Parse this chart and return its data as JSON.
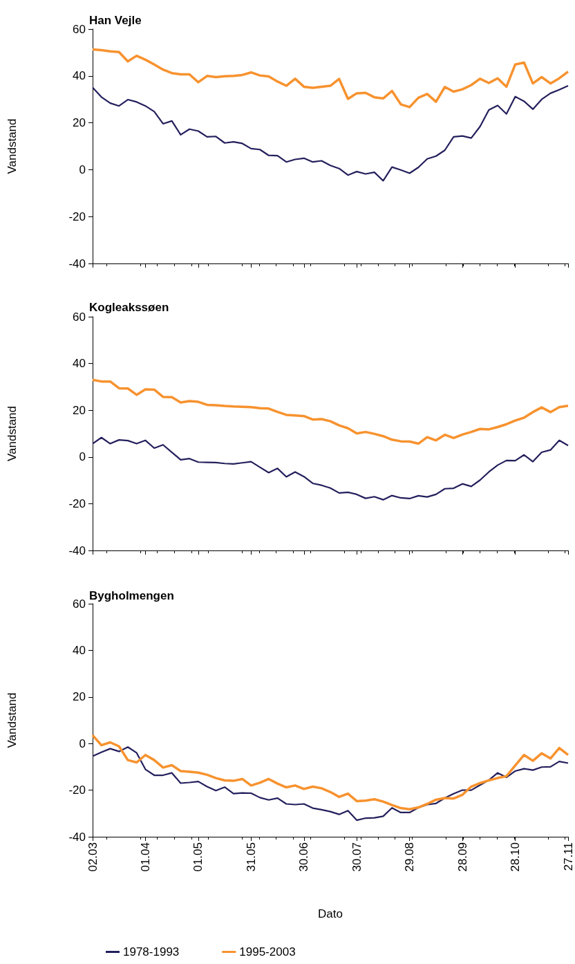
{
  "chart_data": [
    {
      "type": "line",
      "title": "Han Vejle",
      "ylabel": "Vandstand",
      "x": [
        "--03-02",
        "--03-07",
        "--03-12",
        "--03-17",
        "--03-22",
        "--03-27",
        "--04-01",
        "--04-06",
        "--04-11",
        "--04-16",
        "--04-21",
        "--04-26",
        "--05-01",
        "--05-06",
        "--05-11",
        "--05-16",
        "--05-21",
        "--05-26",
        "--05-31",
        "--06-05",
        "--06-10",
        "--06-15",
        "--06-20",
        "--06-25",
        "--06-30",
        "--07-05",
        "--07-10",
        "--07-15",
        "--07-20",
        "--07-25",
        "--07-30",
        "--08-04",
        "--08-09",
        "--08-14",
        "--08-19",
        "--08-24",
        "--08-29",
        "--09-03",
        "--09-08",
        "--09-13",
        "--09-18",
        "--09-23",
        "--09-28",
        "--10-03",
        "--10-08",
        "--10-13",
        "--10-18",
        "--10-23",
        "--10-28",
        "--11-02",
        "--11-07",
        "--11-12",
        "--11-17",
        "--11-22",
        "--11-27"
      ],
      "xlim": [
        "--03-02",
        "--11-27"
      ],
      "xticks": [
        {
          "value": "--03-02",
          "label": "02.03"
        },
        {
          "value": "--04-01",
          "label": "01.04"
        },
        {
          "value": "--05-01",
          "label": "01.05"
        },
        {
          "value": "--05-31",
          "label": "31.05"
        },
        {
          "value": "--06-30",
          "label": "30.06"
        },
        {
          "value": "--07-30",
          "label": "30.07"
        },
        {
          "value": "--08-29",
          "label": "29.08"
        },
        {
          "value": "--09-28",
          "label": "28.09"
        },
        {
          "value": "--10-28",
          "label": "28.10"
        },
        {
          "value": "--11-27",
          "label": "27.11"
        }
      ],
      "ylim": [
        -40,
        60
      ],
      "yticks": [
        -40,
        -20,
        0,
        20,
        40,
        60
      ],
      "tick_labels": "y",
      "grid": false,
      "legend": false,
      "series": [
        {
          "color": "#231f5c",
          "values": [
            35.1,
            31,
            28.4,
            27.2,
            29.9,
            28.9,
            27.2,
            24.8,
            19.6,
            20.8,
            14.9,
            17.3,
            16.5,
            14,
            14.2,
            11.4,
            11.9,
            11.2,
            9,
            8.6,
            6.1,
            6,
            3.3,
            4.4,
            4.9,
            3.3,
            3.8,
            1.8,
            0.5,
            -2.3,
            -0.8,
            -1.8,
            -1.1,
            -4.7,
            1.1,
            -0.1,
            -1.5,
            1,
            4.6,
            5.8,
            8.3,
            14,
            14.4,
            13.5,
            18.4,
            25.5,
            27.4,
            23.8,
            31.2,
            29.2,
            25.8,
            30,
            32.6,
            34.1,
            35.8
          ]
        },
        {
          "color": "#f7922e",
          "values": [
            51.3,
            51,
            50.5,
            50.2,
            46.2,
            48.6,
            46.9,
            44.9,
            42.7,
            41.2,
            40.7,
            40.7,
            37.3,
            40,
            39.5,
            39.9,
            40,
            40.4,
            41.5,
            40.2,
            39.8,
            37.6,
            35.8,
            38.8,
            35.4,
            34.9,
            35.4,
            35.8,
            38.7,
            30.2,
            32.6,
            32.8,
            30.9,
            30.4,
            33.6,
            27.9,
            26.7,
            30.7,
            32.3,
            29,
            35.3,
            33.3,
            34.3,
            36.1,
            38.8,
            37,
            39,
            35.4,
            44.9,
            45.7,
            36.8,
            39.5,
            36.8,
            39,
            41.8
          ]
        }
      ]
    },
    {
      "type": "line",
      "title": "Kogleakssøen",
      "ylabel": "Vandstand",
      "x": [
        "--03-02",
        "--03-07",
        "--03-12",
        "--03-17",
        "--03-22",
        "--03-27",
        "--04-01",
        "--04-06",
        "--04-11",
        "--04-16",
        "--04-21",
        "--04-26",
        "--05-01",
        "--05-06",
        "--05-11",
        "--05-16",
        "--05-21",
        "--05-26",
        "--05-31",
        "--06-05",
        "--06-10",
        "--06-15",
        "--06-20",
        "--06-25",
        "--06-30",
        "--07-05",
        "--07-10",
        "--07-15",
        "--07-20",
        "--07-25",
        "--07-30",
        "--08-04",
        "--08-09",
        "--08-14",
        "--08-19",
        "--08-24",
        "--08-29",
        "--09-03",
        "--09-08",
        "--09-13",
        "--09-18",
        "--09-23",
        "--09-28",
        "--10-03",
        "--10-08",
        "--10-13",
        "--10-18",
        "--10-23",
        "--10-28",
        "--11-02",
        "--11-07",
        "--11-12",
        "--11-17",
        "--11-22",
        "--11-27"
      ],
      "xlim": [
        "--03-02",
        "--11-27"
      ],
      "xticks": [
        {
          "value": "--03-02",
          "label": "02.03"
        },
        {
          "value": "--04-01",
          "label": "01.04"
        },
        {
          "value": "--05-01",
          "label": "01.05"
        },
        {
          "value": "--05-31",
          "label": "31.05"
        },
        {
          "value": "--06-30",
          "label": "30.06"
        },
        {
          "value": "--07-30",
          "label": "30.07"
        },
        {
          "value": "--08-29",
          "label": "29.08"
        },
        {
          "value": "--09-28",
          "label": "28.09"
        },
        {
          "value": "--10-28",
          "label": "28.10"
        },
        {
          "value": "--11-27",
          "label": "27.11"
        }
      ],
      "ylim": [
        -40,
        60
      ],
      "yticks": [
        -40,
        -20,
        0,
        20,
        40,
        60
      ],
      "tick_labels": "y",
      "grid": false,
      "legend": false,
      "series": [
        {
          "color": "#231f5c",
          "values": [
            5.7,
            8.3,
            5.7,
            7.3,
            7,
            5.7,
            7.1,
            3.8,
            5.2,
            2,
            -1.2,
            -0.7,
            -2.2,
            -2.3,
            -2.4,
            -2.8,
            -3,
            -2.5,
            -2,
            -4.4,
            -6.7,
            -4.9,
            -8.5,
            -6.4,
            -8.4,
            -11.3,
            -12.1,
            -13.3,
            -15.4,
            -15.1,
            -16,
            -17.7,
            -17,
            -18.3,
            -16.5,
            -17.5,
            -17.8,
            -16.6,
            -17.1,
            -16,
            -13.6,
            -13.4,
            -11.5,
            -12.6,
            -9.9,
            -6.4,
            -3.5,
            -1.5,
            -1.6,
            0.9,
            -2,
            2,
            3,
            7.1,
            4.9
          ]
        },
        {
          "color": "#f7922e",
          "values": [
            33,
            32.3,
            32.3,
            29.4,
            29.3,
            26.6,
            28.9,
            28.8,
            25.7,
            25.6,
            23.3,
            23.9,
            23.6,
            22.3,
            22.1,
            21.8,
            21.6,
            21.5,
            21.3,
            20.9,
            20.7,
            19.3,
            18,
            17.8,
            17.5,
            16,
            16.2,
            15.3,
            13.5,
            12.3,
            10.1,
            10.7,
            9.9,
            8.9,
            7.4,
            6.7,
            6.6,
            5.7,
            8.5,
            7.1,
            9.5,
            8.1,
            9.6,
            10.7,
            12,
            11.8,
            12.8,
            14,
            15.6,
            16.8,
            19.2,
            21.2,
            19.2,
            21.3,
            21.9
          ]
        }
      ]
    },
    {
      "type": "line",
      "title": "Bygholmengen",
      "ylabel": "Vandstand",
      "xlabel": "Dato",
      "x": [
        "--03-02",
        "--03-07",
        "--03-12",
        "--03-17",
        "--03-22",
        "--03-27",
        "--04-01",
        "--04-06",
        "--04-11",
        "--04-16",
        "--04-21",
        "--04-26",
        "--05-01",
        "--05-06",
        "--05-11",
        "--05-16",
        "--05-21",
        "--05-26",
        "--05-31",
        "--06-05",
        "--06-10",
        "--06-15",
        "--06-20",
        "--06-25",
        "--06-30",
        "--07-05",
        "--07-10",
        "--07-15",
        "--07-20",
        "--07-25",
        "--07-30",
        "--08-04",
        "--08-09",
        "--08-14",
        "--08-19",
        "--08-24",
        "--08-29",
        "--09-03",
        "--09-08",
        "--09-13",
        "--09-18",
        "--09-23",
        "--09-28",
        "--10-03",
        "--10-08",
        "--10-13",
        "--10-18",
        "--10-23",
        "--10-28",
        "--11-02",
        "--11-07",
        "--11-12",
        "--11-17",
        "--11-22",
        "--11-27"
      ],
      "xlim": [
        "--03-02",
        "--11-27"
      ],
      "xticks": [
        {
          "value": "--03-02",
          "label": "02.03"
        },
        {
          "value": "--04-01",
          "label": "01.04"
        },
        {
          "value": "--05-01",
          "label": "01.05"
        },
        {
          "value": "--05-31",
          "label": "31.05"
        },
        {
          "value": "--06-30",
          "label": "30.06"
        },
        {
          "value": "--07-30",
          "label": "30.07"
        },
        {
          "value": "--08-29",
          "label": "29.08"
        },
        {
          "value": "--09-28",
          "label": "28.09"
        },
        {
          "value": "--10-28",
          "label": "28.10"
        },
        {
          "value": "--11-27",
          "label": "27.11"
        }
      ],
      "ylim": [
        -40,
        60
      ],
      "yticks": [
        -40,
        -20,
        0,
        20,
        40,
        60
      ],
      "grid": false,
      "legend": "bottom",
      "series": [
        {
          "name": "1978-1993",
          "color": "#231f5c",
          "values": [
            -5.4,
            -3.7,
            -2.2,
            -3.4,
            -1.5,
            -4,
            -11.1,
            -13.6,
            -13.6,
            -12.6,
            -17,
            -16.7,
            -16.3,
            -18.5,
            -20.2,
            -18.7,
            -21.5,
            -21.2,
            -21.3,
            -23.2,
            -24.2,
            -23.4,
            -25.9,
            -26.2,
            -25.9,
            -27.7,
            -28.4,
            -29.2,
            -30.4,
            -28.8,
            -32.9,
            -32,
            -31.9,
            -31.2,
            -27.6,
            -29.6,
            -29.6,
            -27.5,
            -26.2,
            -25.7,
            -23.4,
            -21.5,
            -20,
            -20,
            -17.8,
            -15.7,
            -12.6,
            -14.5,
            -11.8,
            -10.8,
            -11.4,
            -10.1,
            -10,
            -7.7,
            -8.4
          ]
        },
        {
          "name": "1995-2003",
          "color": "#f7922e",
          "values": [
            3.6,
            -0.7,
            0.5,
            -1.2,
            -7.1,
            -8.1,
            -4.9,
            -7.1,
            -10.3,
            -9.3,
            -11.8,
            -12.1,
            -12.5,
            -13.4,
            -14.8,
            -15.8,
            -16,
            -15.2,
            -18,
            -16.8,
            -15.2,
            -17.2,
            -18.8,
            -18,
            -19.5,
            -18.5,
            -19.2,
            -20.8,
            -22.9,
            -21.5,
            -24.7,
            -24.5,
            -23.9,
            -24.9,
            -26.4,
            -27.7,
            -28.2,
            -27.4,
            -25.9,
            -24.1,
            -23.4,
            -23.6,
            -22,
            -18.5,
            -17,
            -15.8,
            -14.8,
            -14,
            -9.4,
            -4.9,
            -7.4,
            -4.2,
            -6.4,
            -1.9,
            -4.9
          ]
        }
      ]
    }
  ]
}
